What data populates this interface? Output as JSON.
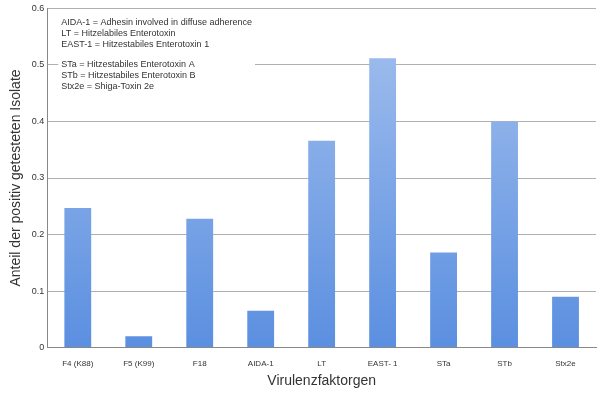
{
  "chart_data": {
    "type": "bar",
    "x_label": "Virulenzfaktorgen",
    "y_label": "Anteil der positiv getesteten Isolate",
    "annotations": [
      [
        "AIDA-1 = Adhesin involved in diffuse adherence",
        "LT = Hitzelabiles Enterotoxin",
        "EAST-1 = Hitzestabiles Enterotoxin 1"
      ],
      [
        "STa = Hitzestabiles Enterotoxin A",
        "STb = Hitzestabiles Enterotoxin B",
        "Stx2e = Shiga-Toxin 2e"
      ]
    ],
    "categories": [
      "F4 (K88)",
      "F5 (K99)",
      "F18",
      "AIDA-1",
      "LT",
      "EAST- 1",
      "STa",
      "STb",
      "Stx2e"
    ],
    "values": [
      0.247,
      0.02,
      0.228,
      0.065,
      0.366,
      0.512,
      0.168,
      0.4,
      0.09
    ],
    "color": "#5b8fe0",
    "ylim": [
      0,
      0.6
    ],
    "yticks": [
      0,
      0.1,
      0.2,
      0.3,
      0.4,
      0.5,
      0.6
    ],
    "grid": true
  }
}
